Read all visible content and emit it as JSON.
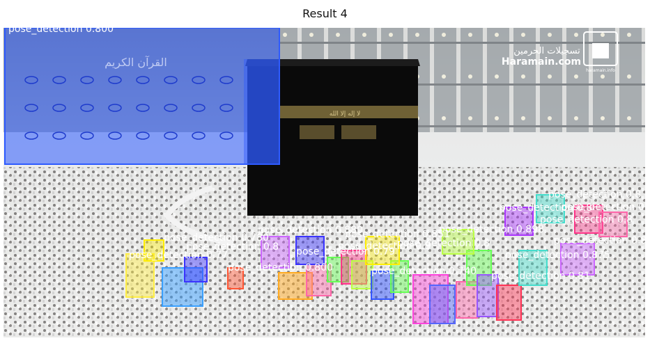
{
  "figure": {
    "title": "Result 4"
  },
  "image": {
    "watermark_text": [
      "تسجيلات الحرمين",
      "Haramain.com",
      "haramain.info"
    ],
    "kiswa_text": "لا إله إلا الله",
    "banner_text": "القرآن الكريم"
  },
  "detections": {
    "label": "pose_detection",
    "boxes": [
      {
        "score": "0.800",
        "color": "#2e5bff"
      },
      {
        "score": "0.880",
        "color": "#cc66ff"
      },
      {
        "score": "0.851",
        "color": "#ffee00"
      },
      {
        "score": "0.780",
        "color": "#3b34ff"
      },
      {
        "score": "0.77",
        "color": "#ffee44"
      },
      {
        "score": "0.8",
        "color": "#3aa0ff"
      },
      {
        "score": "0.800",
        "color": "#ff5533"
      },
      {
        "score": "0.740",
        "color": "#3355ff"
      },
      {
        "score": "0.79",
        "color": "#ff44dd"
      },
      {
        "score": "0.898",
        "color": "#66ff55"
      },
      {
        "score": "0.81",
        "color": "#9955ff"
      },
      {
        "score": "0.875",
        "color": "#aa33ff"
      },
      {
        "score": "0.8",
        "color": "#ff66aa"
      },
      {
        "score": "0.8",
        "color": "#44ddcc"
      },
      {
        "score": "0.8",
        "color": "#ff3388"
      },
      {
        "score": "0.8",
        "color": "#bbff44"
      },
      {
        "score": "0.8",
        "color": "#5566ff"
      },
      {
        "score": "0.8",
        "color": "#ffaa22"
      },
      {
        "score": "0.8",
        "color": "#ff3355"
      }
    ]
  }
}
